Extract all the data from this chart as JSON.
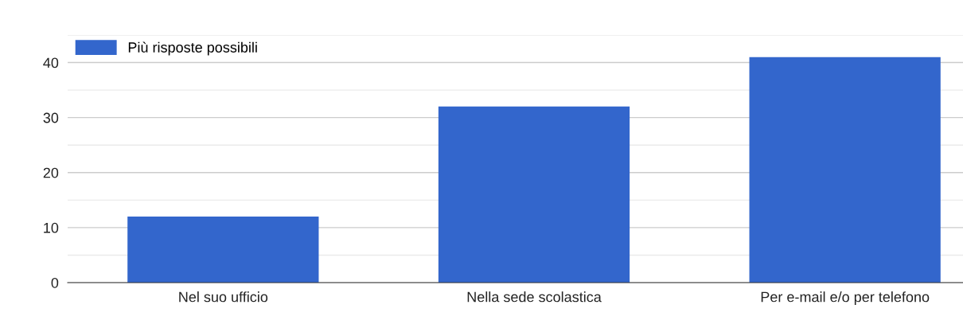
{
  "chart_data": {
    "type": "bar",
    "categories": [
      "Nel suo ufficio",
      "Nella sede scolastica",
      "Per e-mail e/o per telefono"
    ],
    "series": [
      {
        "name": "Più risposte possibili",
        "color": "#3366cc",
        "values": [
          12,
          32,
          41
        ]
      }
    ],
    "ylim": [
      0,
      45
    ],
    "yticks": [
      0,
      {
        "value": 5,
        "label": null
      },
      10,
      {
        "value": 15,
        "label": null
      },
      20,
      {
        "value": 25,
        "label": null
      },
      30,
      {
        "value": 35,
        "label": null
      },
      40,
      {
        "value": 45,
        "label": null
      }
    ],
    "grid": "y",
    "legend": "top left"
  }
}
